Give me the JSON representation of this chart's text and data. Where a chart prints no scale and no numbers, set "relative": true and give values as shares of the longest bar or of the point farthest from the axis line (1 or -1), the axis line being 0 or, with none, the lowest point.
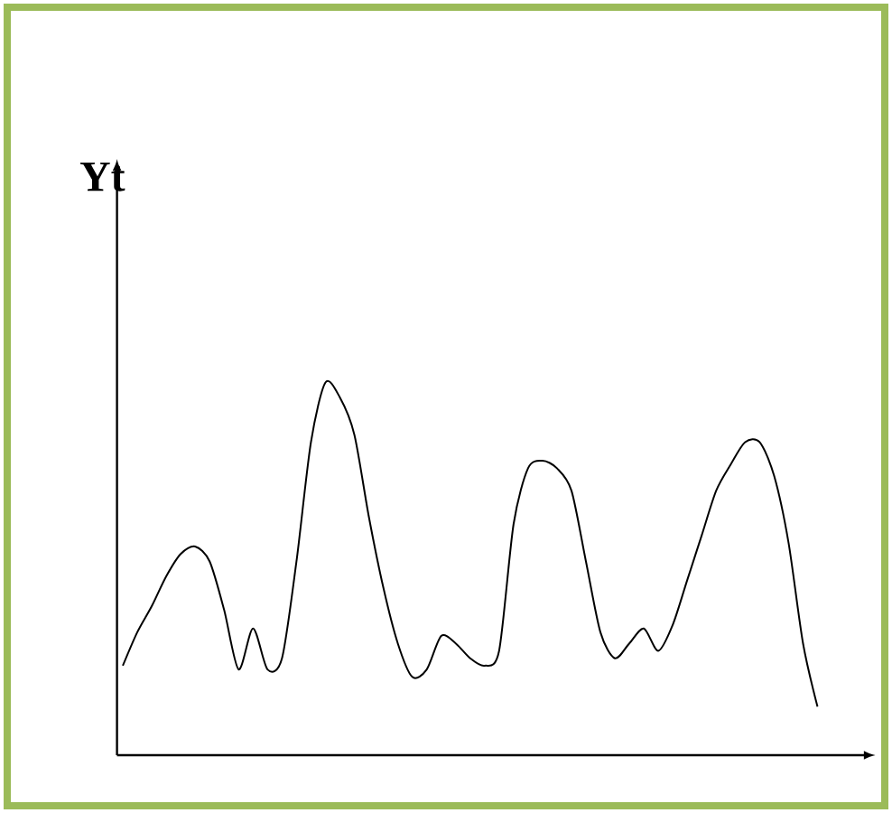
{
  "chart_data": {
    "type": "line",
    "ylabel": "Yt",
    "relative": true,
    "color": "#000000",
    "categories": [
      null,
      null,
      null,
      null,
      null,
      null,
      null,
      null,
      null,
      null,
      null,
      null,
      null,
      null,
      null,
      null,
      null,
      null,
      null,
      null,
      null,
      null,
      null,
      null,
      null,
      null,
      null,
      null,
      null,
      null,
      null,
      null,
      null,
      null,
      null,
      null,
      null,
      null,
      null,
      null,
      null,
      null,
      null,
      null,
      null,
      null,
      null,
      null,
      null
    ],
    "values": [
      0.24,
      0.33,
      0.4,
      0.48,
      0.54,
      0.56,
      0.52,
      0.39,
      0.23,
      0.34,
      0.23,
      0.26,
      0.52,
      0.84,
      1,
      0.96,
      0.86,
      0.64,
      0.45,
      0.3,
      0.21,
      0.23,
      0.32,
      0.3,
      0.26,
      0.24,
      0.28,
      0.62,
      0.77,
      0.79,
      0.77,
      0.71,
      0.52,
      0.33,
      0.26,
      0.3,
      0.34,
      0.28,
      0.35,
      0.47,
      0.59,
      0.71,
      0.78,
      0.84,
      0.84,
      0.75,
      0.57,
      0.3,
      0.13
    ]
  }
}
